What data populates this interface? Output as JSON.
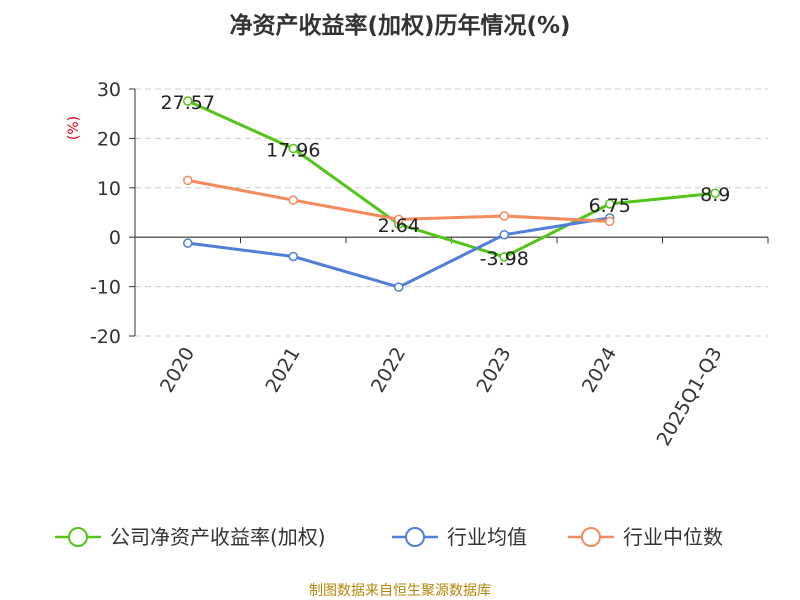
{
  "chart_data": {
    "type": "line",
    "title": "净资产收益率(加权)历年情况(%)",
    "unit_label": "(%)",
    "categories": [
      "2020",
      "2021",
      "2022",
      "2023",
      "2024",
      "2025Q1-Q3"
    ],
    "ylim": [
      -20,
      30
    ],
    "yticks": [
      30,
      20,
      10,
      0,
      -10,
      -20
    ],
    "grid": true,
    "legend_position": "bottom",
    "series": [
      {
        "name": "公司净资产收益率(加权)",
        "color": "#52c41a",
        "labels": [
          "27.57",
          "17.96",
          "2.64",
          "-3.98",
          "6.75",
          "8.9"
        ],
        "values": [
          27.57,
          17.96,
          2.64,
          -3.98,
          6.75,
          8.9
        ]
      },
      {
        "name": "行业均值",
        "color": "#4f7fd8",
        "values": [
          -1.2,
          -3.9,
          -10.1,
          0.5,
          3.9,
          null
        ]
      },
      {
        "name": "行业中位数",
        "color": "#f58a5c",
        "values": [
          11.5,
          7.5,
          3.6,
          4.3,
          3.2,
          null
        ]
      }
    ]
  },
  "footer": {
    "source": "制图数据来自恒生聚源数据库"
  }
}
